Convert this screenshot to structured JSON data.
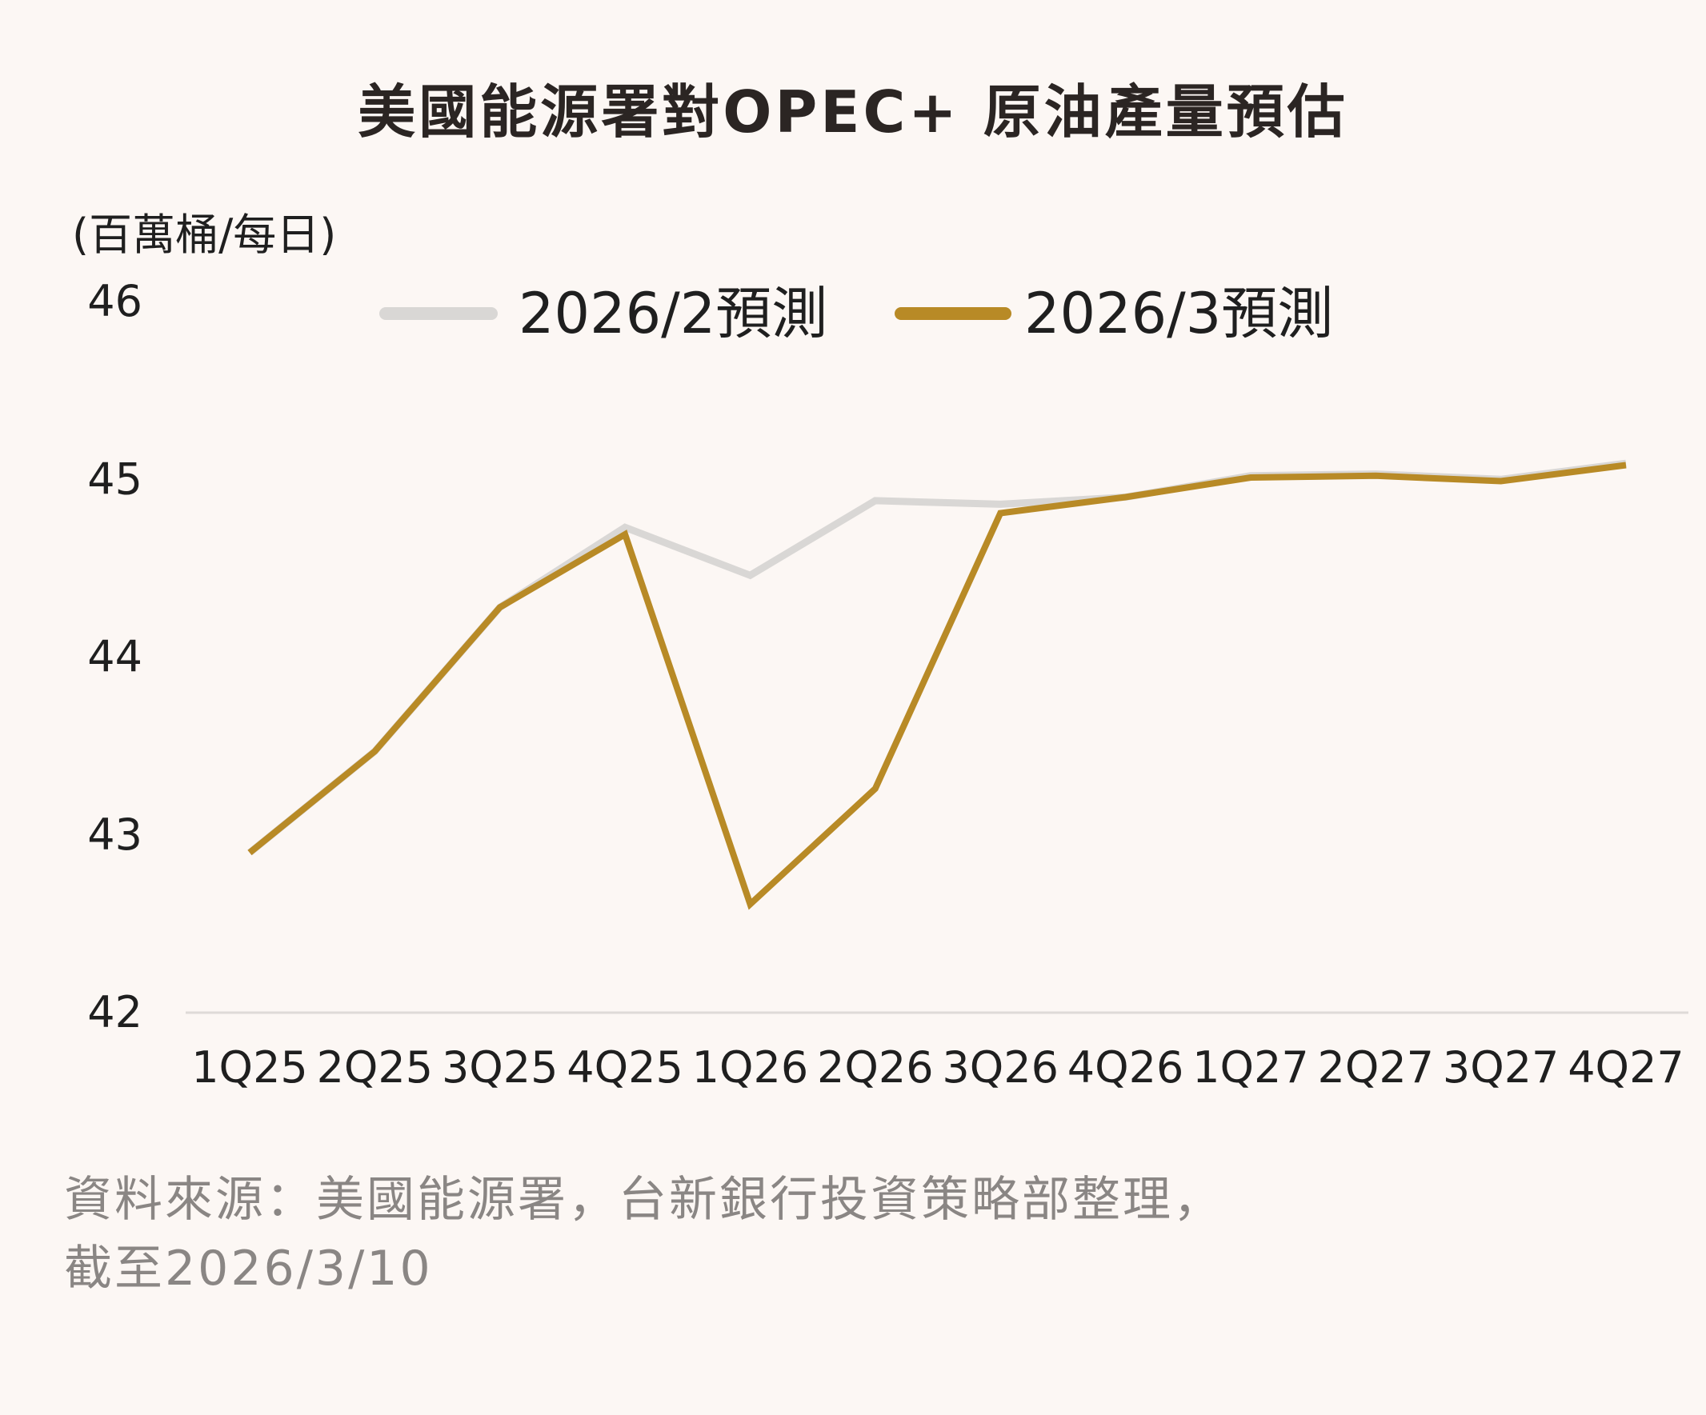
{
  "chart_data": {
    "type": "line",
    "title": "美國能源署對OPEC+ 原油產量預估",
    "unit_label": "(百萬桶/每日)",
    "ylim": [
      42,
      46
    ],
    "y_ticks": [
      "42",
      "43",
      "44",
      "45",
      "46"
    ],
    "categories": [
      "1Q25",
      "2Q25",
      "3Q25",
      "4Q25",
      "1Q26",
      "2Q26",
      "3Q26",
      "4Q26",
      "1Q27",
      "2Q27",
      "3Q27",
      "4Q27"
    ],
    "series": [
      {
        "name": "2026/2預測",
        "color": "#d9d7d5",
        "values": [
          42.9,
          43.47,
          44.28,
          44.73,
          44.46,
          44.88,
          44.86,
          44.9,
          45.02,
          45.03,
          45.0,
          45.09
        ]
      },
      {
        "name": "2026/3預測",
        "color": "#b88a26",
        "values": [
          42.9,
          43.47,
          44.28,
          44.69,
          42.61,
          43.26,
          44.81,
          44.9,
          45.01,
          45.02,
          44.99,
          45.08
        ]
      }
    ],
    "grid": false,
    "legend_position": "top-center"
  },
  "footer": {
    "source_line1": "資料來源：美國能源署，台新銀行投資策略部整理，",
    "source_line2": "截至2026/3/10"
  }
}
